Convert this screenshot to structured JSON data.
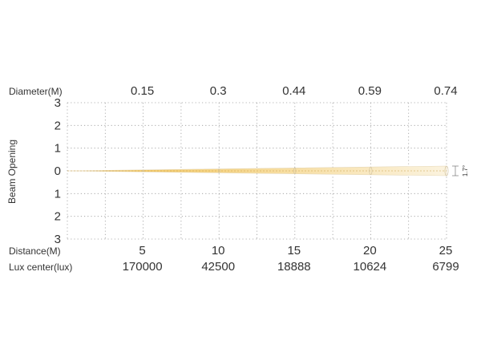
{
  "chart_data": {
    "type": "area",
    "title": "",
    "ylabel": "Beam Opening",
    "beam_angle_label": "1.7°",
    "y_ticks": [
      "3",
      "2",
      "1",
      "0",
      "1",
      "2",
      "3"
    ],
    "ylim": [
      -3,
      3
    ],
    "xlim": [
      0,
      25
    ],
    "grid": true,
    "x": [
      5,
      10,
      15,
      20,
      25
    ],
    "rows": [
      {
        "label": "Diameter(M)",
        "values": [
          "0.15",
          "0.3",
          "0.44",
          "0.59",
          "0.74"
        ]
      },
      {
        "label": "Distance(M)",
        "values": [
          "5",
          "10",
          "15",
          "20",
          "25"
        ]
      },
      {
        "label": "Lux center(lux)",
        "values": [
          "170000",
          "42500",
          "18888",
          "10624",
          "6799"
        ]
      }
    ],
    "colors": {
      "beam_near": "#f2c14e",
      "beam_far": "#fbf3df",
      "grid": "#9a9a9a"
    }
  }
}
